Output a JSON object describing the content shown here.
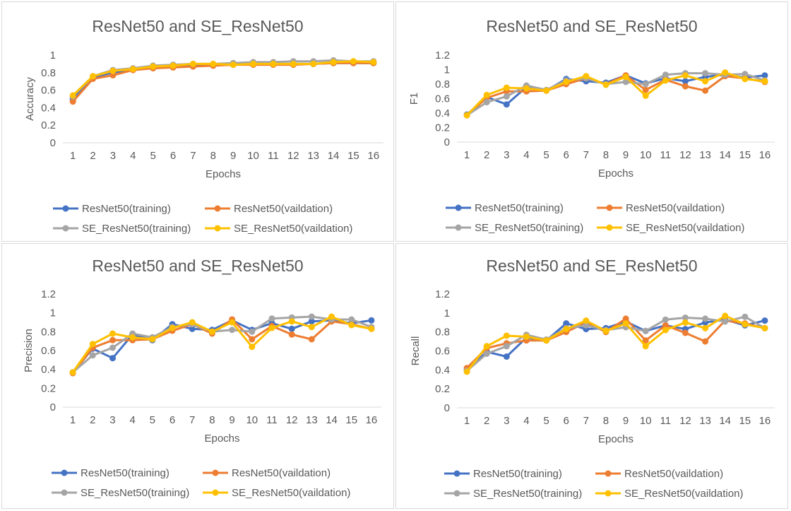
{
  "colors": {
    "resnet_training": "#4472C4",
    "resnet_validation": "#ED7D31",
    "se_training": "#A5A5A5",
    "se_validation": "#FFC000",
    "axis": "#d9d9d9",
    "text": "#595959"
  },
  "chart_data": [
    {
      "type": "line",
      "title": "ResNet50 and SE_ResNet50",
      "xlabel": "Epochs",
      "ylabel": "Accuracy",
      "ylim": [
        0,
        1
      ],
      "yticks": [
        "0",
        "0.2",
        "0.4",
        "0.6",
        "0.8",
        "1"
      ],
      "grid": false,
      "legend": "bottom",
      "categories": [
        "1",
        "2",
        "3",
        "4",
        "5",
        "6",
        "7",
        "8",
        "9",
        "10",
        "11",
        "12",
        "13",
        "14",
        "15",
        "16"
      ],
      "series": [
        {
          "name": "ResNet50(training)",
          "values": [
            0.5,
            0.75,
            0.8,
            0.84,
            0.86,
            0.87,
            0.88,
            0.89,
            0.89,
            0.9,
            0.9,
            0.9,
            0.9,
            0.91,
            0.91,
            0.91
          ]
        },
        {
          "name": "ResNet50(vaildation)",
          "values": [
            0.47,
            0.73,
            0.77,
            0.83,
            0.85,
            0.86,
            0.87,
            0.88,
            0.89,
            0.89,
            0.89,
            0.89,
            0.9,
            0.91,
            0.91,
            0.91
          ]
        },
        {
          "name": "SE_ResNet50(training)",
          "values": [
            0.53,
            0.76,
            0.83,
            0.85,
            0.88,
            0.89,
            0.9,
            0.9,
            0.91,
            0.92,
            0.92,
            0.93,
            0.93,
            0.94,
            0.93,
            0.93
          ]
        },
        {
          "name": "SE_ResNet50(vaildation)",
          "values": [
            0.54,
            0.76,
            0.82,
            0.84,
            0.87,
            0.88,
            0.9,
            0.9,
            0.89,
            0.9,
            0.9,
            0.9,
            0.9,
            0.92,
            0.93,
            0.92
          ]
        }
      ]
    },
    {
      "type": "line",
      "title": "ResNet50 and SE_ResNet50",
      "xlabel": "Epochs",
      "ylabel": "F1",
      "ylim": [
        0,
        1.2
      ],
      "yticks": [
        "0",
        "0.2",
        "0.4",
        "0.6",
        "0.8",
        "1",
        "1.2"
      ],
      "grid": false,
      "legend": "bottom",
      "categories": [
        "1",
        "2",
        "3",
        "4",
        "5",
        "6",
        "7",
        "8",
        "9",
        "10",
        "11",
        "12",
        "13",
        "14",
        "15",
        "16"
      ],
      "series": [
        {
          "name": "ResNet50(training)",
          "values": [
            0.38,
            0.62,
            0.52,
            0.76,
            0.71,
            0.87,
            0.84,
            0.82,
            0.92,
            0.81,
            0.88,
            0.84,
            0.9,
            0.93,
            0.89,
            0.92
          ]
        },
        {
          "name": "ResNet50(vaildation)",
          "values": [
            0.37,
            0.61,
            0.7,
            0.7,
            0.71,
            0.8,
            0.88,
            0.8,
            0.92,
            0.72,
            0.86,
            0.77,
            0.71,
            0.91,
            0.88,
            0.83
          ]
        },
        {
          "name": "SE_ResNet50(training)",
          "values": [
            0.37,
            0.55,
            0.63,
            0.78,
            0.72,
            0.85,
            0.88,
            0.8,
            0.83,
            0.8,
            0.93,
            0.95,
            0.95,
            0.93,
            0.94,
            0.85
          ]
        },
        {
          "name": "SE_ResNet50(vaildation)",
          "values": [
            0.37,
            0.65,
            0.75,
            0.74,
            0.71,
            0.83,
            0.91,
            0.79,
            0.9,
            0.64,
            0.85,
            0.92,
            0.84,
            0.96,
            0.87,
            0.84
          ]
        }
      ]
    },
    {
      "type": "line",
      "title": "ResNet50 and SE_ResNet50",
      "xlabel": "Epochs",
      "ylabel": "Precision",
      "ylim": [
        0,
        1.2
      ],
      "yticks": [
        "0",
        "0.2",
        "0.4",
        "0.6",
        "0.8",
        "1",
        "1.2"
      ],
      "grid": false,
      "legend": "bottom",
      "categories": [
        "1",
        "2",
        "3",
        "4",
        "5",
        "6",
        "7",
        "8",
        "9",
        "10",
        "11",
        "12",
        "13",
        "14",
        "15",
        "16"
      ],
      "series": [
        {
          "name": "ResNet50(training)",
          "values": [
            0.37,
            0.62,
            0.52,
            0.77,
            0.71,
            0.88,
            0.83,
            0.82,
            0.92,
            0.82,
            0.89,
            0.83,
            0.91,
            0.92,
            0.89,
            0.92
          ]
        },
        {
          "name": "ResNet50(vaildation)",
          "values": [
            0.36,
            0.63,
            0.71,
            0.71,
            0.72,
            0.81,
            0.88,
            0.78,
            0.93,
            0.72,
            0.86,
            0.77,
            0.72,
            0.91,
            0.88,
            0.83
          ]
        },
        {
          "name": "SE_ResNet50(training)",
          "values": [
            0.37,
            0.55,
            0.63,
            0.78,
            0.74,
            0.85,
            0.88,
            0.8,
            0.82,
            0.8,
            0.94,
            0.95,
            0.96,
            0.93,
            0.93,
            0.85
          ]
        },
        {
          "name": "SE_ResNet50(vaildation)",
          "values": [
            0.37,
            0.67,
            0.78,
            0.74,
            0.72,
            0.84,
            0.9,
            0.8,
            0.9,
            0.64,
            0.84,
            0.91,
            0.85,
            0.96,
            0.87,
            0.83
          ]
        }
      ]
    },
    {
      "type": "line",
      "title": "ResNet50 and SE_ResNet50",
      "xlabel": "Epochs",
      "ylabel": "Recall",
      "ylim": [
        0,
        1.2
      ],
      "yticks": [
        "0",
        "0.2",
        "0.4",
        "0.6",
        "0.8",
        "1",
        "1.2"
      ],
      "grid": false,
      "legend": "bottom",
      "categories": [
        "1",
        "2",
        "3",
        "4",
        "5",
        "6",
        "7",
        "8",
        "9",
        "10",
        "11",
        "12",
        "13",
        "14",
        "15",
        "16"
      ],
      "series": [
        {
          "name": "ResNet50(training)",
          "values": [
            0.4,
            0.59,
            0.54,
            0.74,
            0.71,
            0.89,
            0.83,
            0.84,
            0.91,
            0.81,
            0.87,
            0.83,
            0.9,
            0.93,
            0.87,
            0.92
          ]
        },
        {
          "name": "ResNet50(vaildation)",
          "values": [
            0.42,
            0.63,
            0.68,
            0.71,
            0.71,
            0.8,
            0.9,
            0.8,
            0.94,
            0.71,
            0.87,
            0.79,
            0.7,
            0.92,
            0.89,
            0.84
          ]
        },
        {
          "name": "SE_ResNet50(training)",
          "values": [
            0.39,
            0.57,
            0.65,
            0.77,
            0.72,
            0.84,
            0.87,
            0.82,
            0.85,
            0.81,
            0.93,
            0.95,
            0.94,
            0.91,
            0.96,
            0.84
          ]
        },
        {
          "name": "SE_ResNet50(vaildation)",
          "values": [
            0.38,
            0.65,
            0.76,
            0.75,
            0.71,
            0.83,
            0.92,
            0.81,
            0.89,
            0.65,
            0.82,
            0.9,
            0.84,
            0.97,
            0.88,
            0.84
          ]
        }
      ]
    }
  ]
}
